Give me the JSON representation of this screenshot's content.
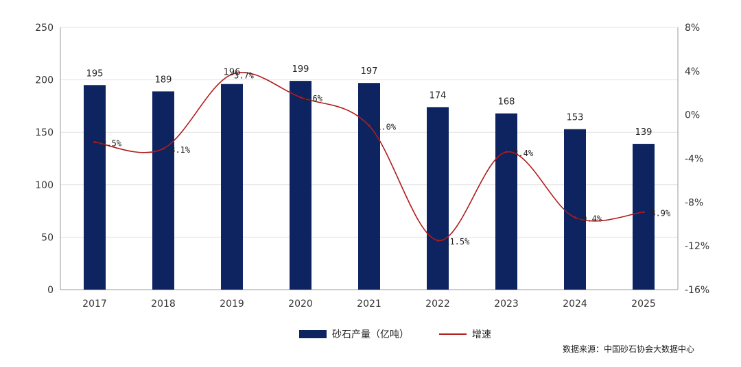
{
  "chart_data": {
    "type": "bar",
    "categories": [
      "2017",
      "2018",
      "2019",
      "2020",
      "2021",
      "2022",
      "2023",
      "2024",
      "2025"
    ],
    "series": [
      {
        "name": "砂石产量（亿吨）",
        "type": "bar",
        "axis": "left",
        "values": [
          195,
          189,
          196,
          199,
          197,
          174,
          168,
          153,
          139
        ],
        "labels": [
          "195",
          "189",
          "196",
          "199",
          "197",
          "174",
          "168",
          "153",
          "139"
        ]
      },
      {
        "name": "增速",
        "type": "line",
        "axis": "right",
        "unit": "%",
        "values": [
          -2.5,
          -3.1,
          3.7,
          1.6,
          -1.0,
          -11.5,
          -3.4,
          -9.4,
          -8.9
        ],
        "labels": [
          "-2.5%",
          "-3.1%",
          "3.7%",
          "1.6%",
          "-1.0%",
          "-11.5%",
          "-3.4%",
          "-9.4%",
          "-8.9%"
        ]
      }
    ],
    "y_left": {
      "lim": [
        0,
        250
      ],
      "ticks": [
        "0",
        "50",
        "100",
        "150",
        "200",
        "250"
      ]
    },
    "y_right": {
      "lim": [
        -16,
        8
      ],
      "ticks": [
        "-16%",
        "-12%",
        "-8%",
        "-4%",
        "0%",
        "4%",
        "8%"
      ]
    },
    "grid": true,
    "legend_position": "bottom",
    "colors": {
      "bar": "#0d2461",
      "line": "#b01c1c",
      "grid": "#e3e3e3",
      "axis": "#9a9a9a"
    }
  },
  "source_note": "数据来源：中国砂石协会大数据中心"
}
